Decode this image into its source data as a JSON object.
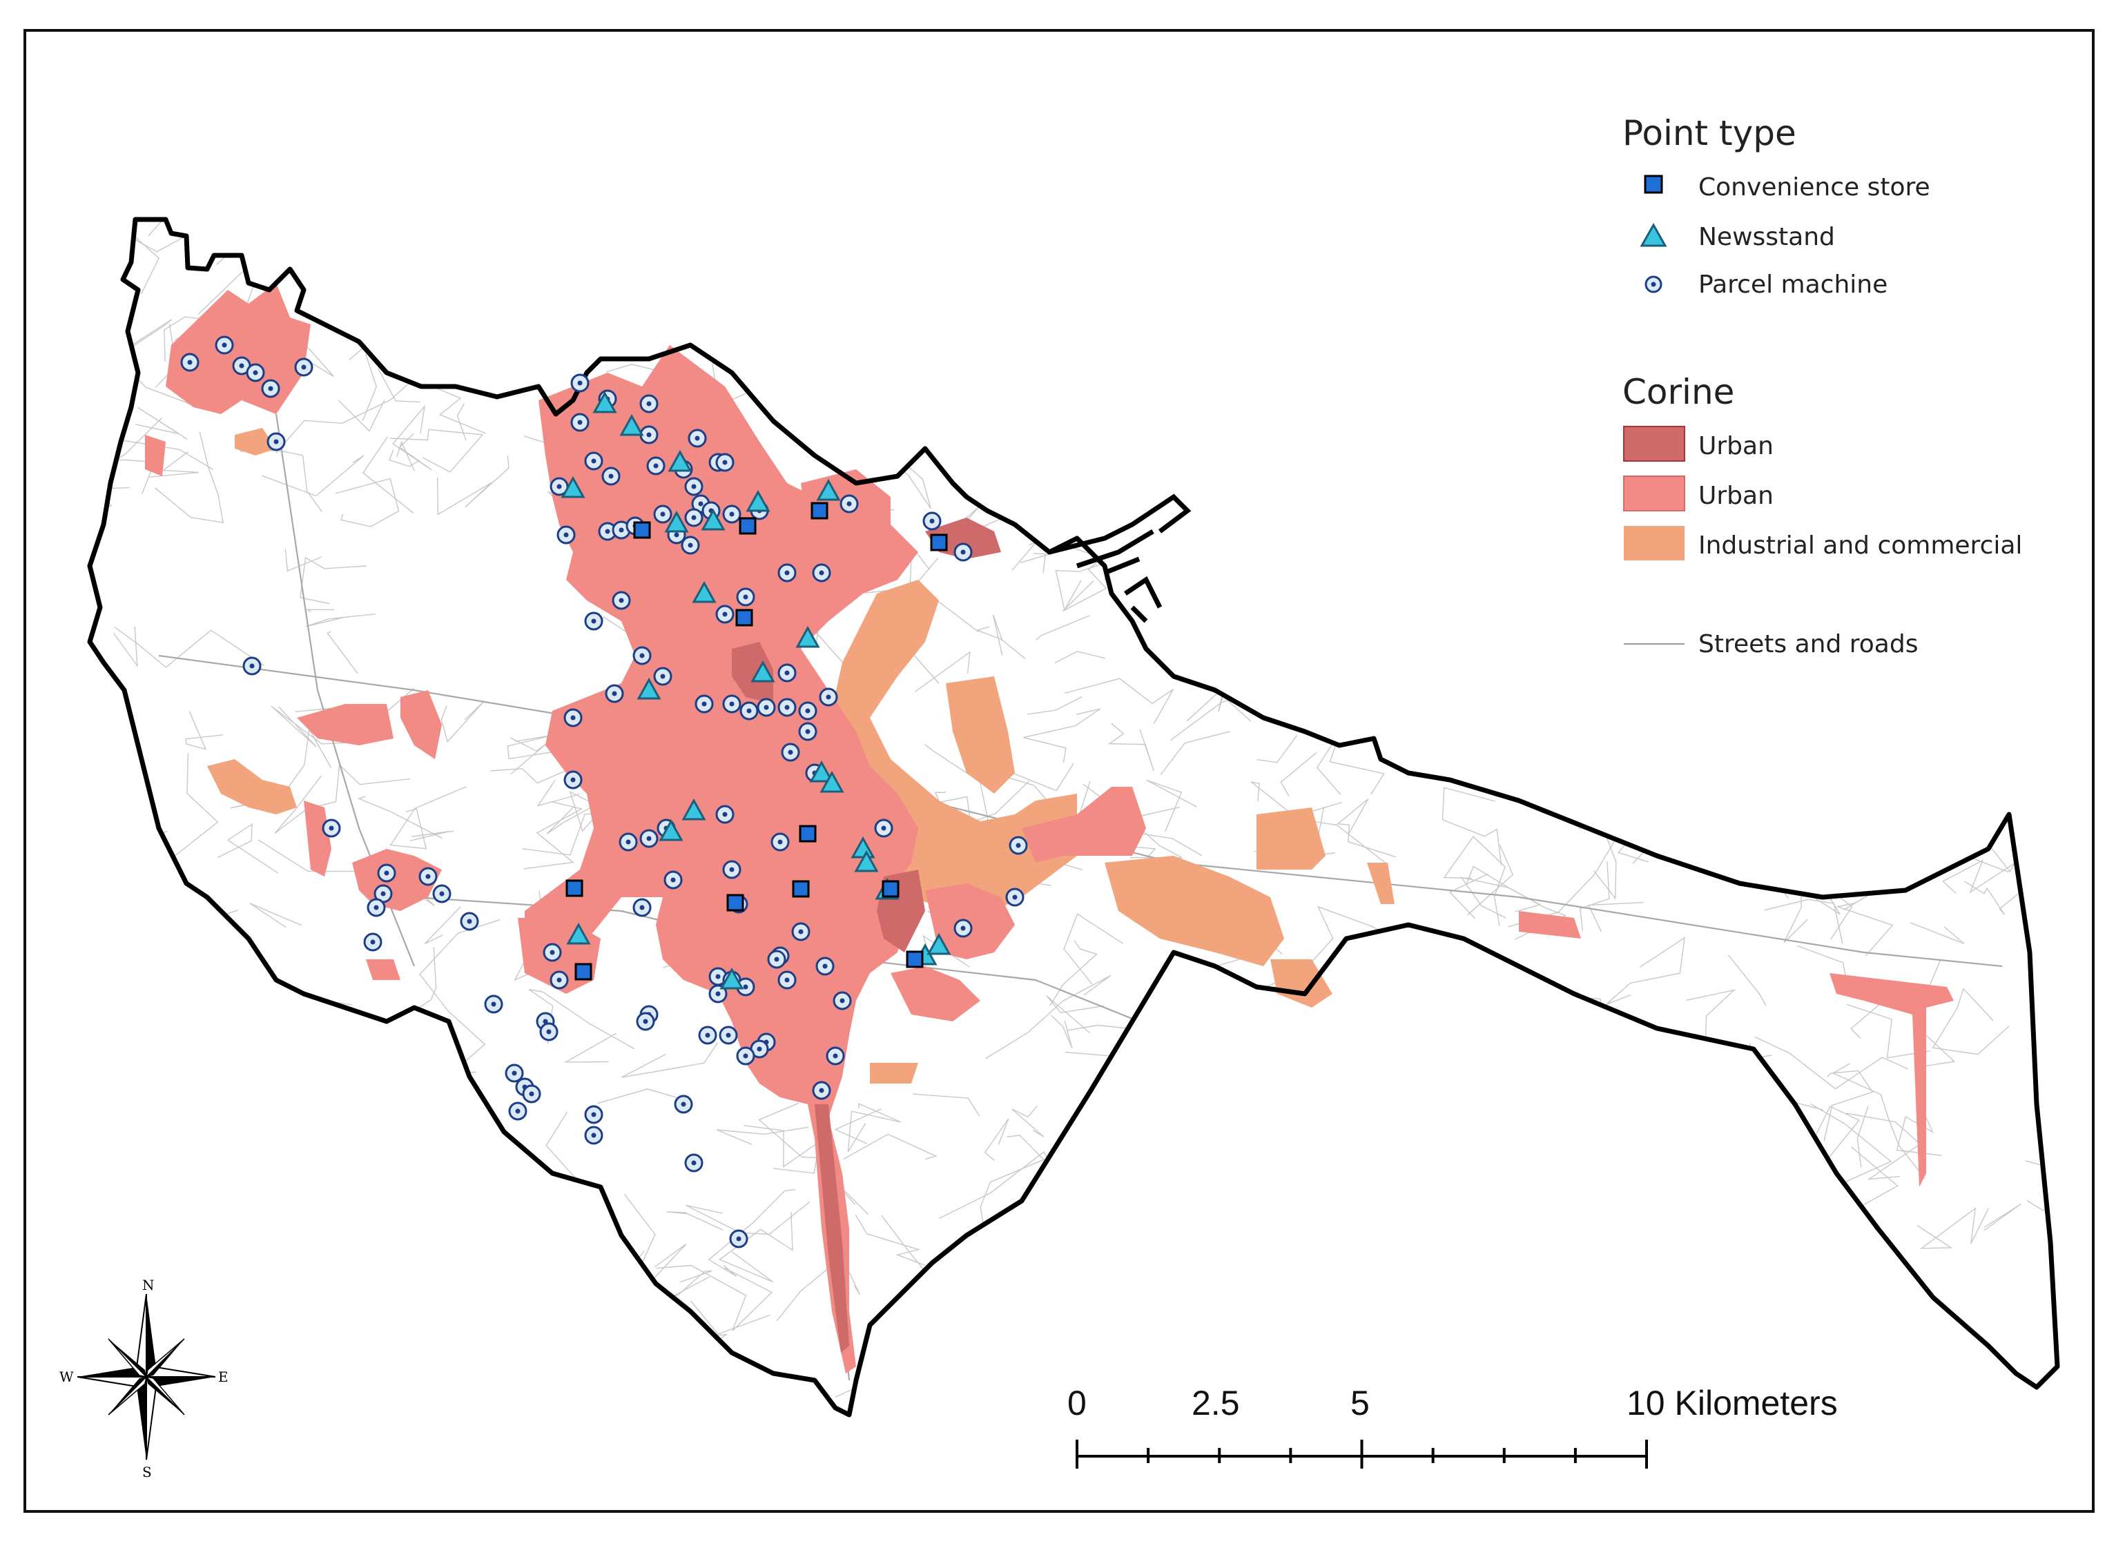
{
  "legend": {
    "point_type_title": "Point type",
    "point_items": [
      {
        "label": "Convenience store",
        "symbol": "square",
        "color": "#1f6fd8"
      },
      {
        "label": "Newsstand",
        "symbol": "triangle",
        "color": "#39c4e0"
      },
      {
        "label": "Parcel machine",
        "symbol": "dotted-circle",
        "color": "#1b3e86"
      }
    ],
    "corine_title": "Corine",
    "corine_items": [
      {
        "label": "Urban",
        "color": "#cf6a6a"
      },
      {
        "label": "Urban",
        "color": "#f28b85"
      },
      {
        "label": "Industrial and commercial",
        "color": "#f2a57c"
      }
    ],
    "streets_label": "Streets and roads"
  },
  "scale_bar": {
    "labels": [
      "0",
      "2.5",
      "5",
      "10 Kilometers"
    ]
  },
  "compass": {
    "n": "N",
    "s": "S",
    "e": "E",
    "w": "W"
  },
  "colors": {
    "boundary": "#000000",
    "urban_dense": "#cf6a6a",
    "urban": "#f28b85",
    "industrial": "#f2a57c",
    "streets": "#c8c8c8"
  }
}
